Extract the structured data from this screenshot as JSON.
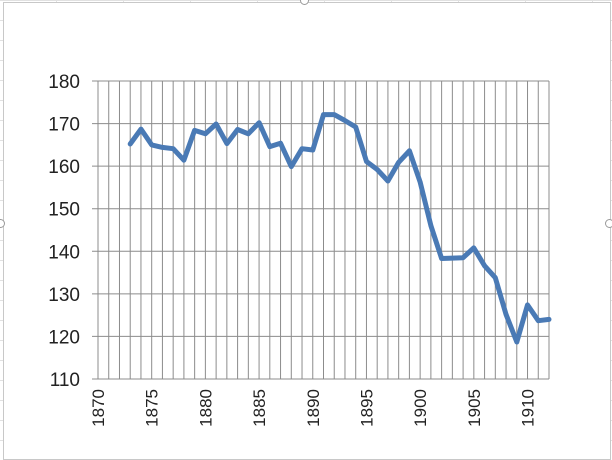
{
  "chart_data": {
    "type": "line",
    "title": "",
    "xlabel": "",
    "ylabel": "",
    "xlim": [
      1870,
      1912
    ],
    "ylim": [
      110,
      180
    ],
    "y_ticks": [
      "110",
      "120",
      "130",
      "140",
      "150",
      "160",
      "170",
      "180"
    ],
    "x_ticks": [
      "1870",
      "1875",
      "1880",
      "1885",
      "1890",
      "1895",
      "1900",
      "1905",
      "1910"
    ],
    "grid": "vertical lines at every year, horizontal lines at every 10",
    "series": [
      {
        "color": "#4a7ab5",
        "x": [
          1873,
          1874,
          1875,
          1876,
          1877,
          1878,
          1879,
          1880,
          1881,
          1882,
          1883,
          1884,
          1885,
          1886,
          1887,
          1888,
          1889,
          1890,
          1891,
          1892,
          1893,
          1894,
          1895,
          1896,
          1897,
          1898,
          1899,
          1900,
          1901,
          1902,
          1903,
          1904,
          1905,
          1906,
          1907,
          1908,
          1909,
          1910,
          1911,
          1912
        ],
        "values": [
          165.2,
          168.7,
          165.0,
          164.4,
          164.1,
          161.4,
          168.4,
          167.6,
          169.9,
          165.3,
          168.6,
          167.6,
          170.2,
          164.6,
          165.4,
          159.9,
          164.1,
          163.8,
          172.1,
          172.1,
          170.7,
          169.2,
          161.1,
          159.2,
          156.5,
          160.9,
          163.6,
          156.3,
          146.0,
          138.3,
          138.4,
          138.5,
          140.8,
          136.6,
          133.8,
          125.2,
          118.7,
          127.4,
          123.7,
          124.0
        ]
      }
    ]
  }
}
